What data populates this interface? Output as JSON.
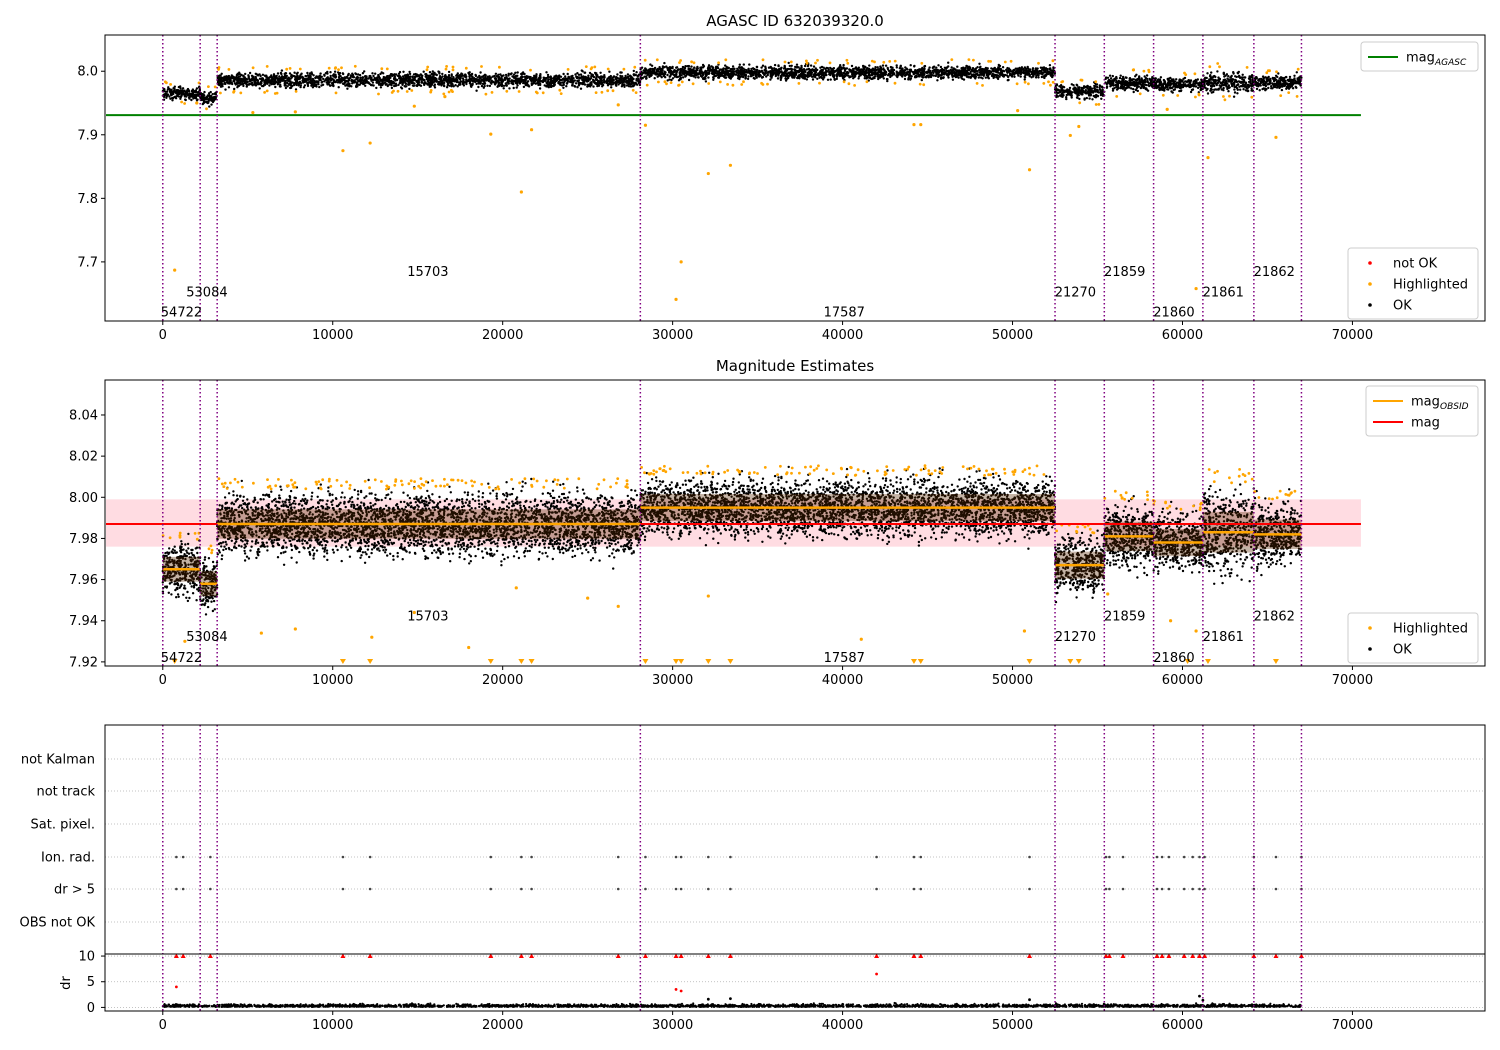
{
  "figure": {
    "title_top": "AGASC ID 632039320.0",
    "title_middle": "Magnitude Estimates"
  },
  "colors": {
    "ok": "#000000",
    "highlighted": "#ffa500",
    "not_ok": "#ff0000",
    "agasc_line": "#008000",
    "mag_line": "#ff0000",
    "obsid_line": "#ffa500",
    "boundary": "#800080",
    "band": "#ffc0cb",
    "grid": "#b0b0b0"
  },
  "chart_data": [
    {
      "type": "scatter",
      "title": "AGASC ID 632039320.0",
      "xlim": [
        -3400,
        77800
      ],
      "ylim": [
        7.607,
        8.057
      ],
      "xticks": [
        0,
        10000,
        20000,
        30000,
        40000,
        50000,
        60000,
        70000
      ],
      "yticks": [
        7.7,
        7.8,
        7.9,
        8.0
      ],
      "ytick_labels": [
        "7.7",
        "7.8",
        "7.9",
        "8.0"
      ],
      "legend_upper": [
        {
          "label": "mag",
          "sub": "AGASC",
          "kind": "line",
          "color": "#008000"
        }
      ],
      "legend_lower": [
        {
          "label": "not OK",
          "kind": "dot",
          "color": "#ff0000"
        },
        {
          "label": "Highlighted",
          "kind": "dot",
          "color": "#ffa500"
        },
        {
          "label": "OK",
          "kind": "dot",
          "color": "#000000"
        }
      ],
      "mag_agasc": 7.931,
      "mag_agasc_xrange": [
        -3400,
        70500
      ],
      "obs_boundaries": [
        0,
        2200,
        3200,
        28100,
        52500,
        55400,
        58300,
        61200,
        64200,
        67000
      ],
      "obs_labels": [
        {
          "text": "54722",
          "x": 0,
          "level": 0
        },
        {
          "text": "53084",
          "x": 1500,
          "level": 1
        },
        {
          "text": "15703",
          "x": 14500,
          "level": 2
        },
        {
          "text": "17587",
          "x": 39000,
          "level": 0
        },
        {
          "text": "21270",
          "x": 52600,
          "level": 1
        },
        {
          "text": "21859",
          "x": 55500,
          "level": 2
        },
        {
          "text": "21860",
          "x": 58400,
          "level": 0
        },
        {
          "text": "21861",
          "x": 61300,
          "level": 1
        },
        {
          "text": "21862",
          "x": 64300,
          "level": 2
        }
      ],
      "obs_label_levels": [
        7.62,
        7.652,
        7.684
      ],
      "segments": [
        {
          "x0": 0,
          "x1": 2200,
          "mean": 7.965,
          "spread": 0.011
        },
        {
          "x0": 2200,
          "x1": 3200,
          "mean": 7.958,
          "spread": 0.011
        },
        {
          "x0": 3200,
          "x1": 28100,
          "mean": 7.986,
          "spread": 0.013
        },
        {
          "x0": 28100,
          "x1": 52500,
          "mean": 7.998,
          "spread": 0.012
        },
        {
          "x0": 52500,
          "x1": 55400,
          "mean": 7.968,
          "spread": 0.012
        },
        {
          "x0": 55400,
          "x1": 58300,
          "mean": 7.982,
          "spread": 0.013
        },
        {
          "x0": 58300,
          "x1": 61200,
          "mean": 7.979,
          "spread": 0.012
        },
        {
          "x0": 61200,
          "x1": 64200,
          "mean": 7.983,
          "spread": 0.018
        },
        {
          "x0": 64200,
          "x1": 67000,
          "mean": 7.982,
          "spread": 0.013
        }
      ],
      "highlighted": [
        {
          "x": 700,
          "y": 7.687
        },
        {
          "x": 2000,
          "y": 7.95
        },
        {
          "x": 10600,
          "y": 7.875
        },
        {
          "x": 12200,
          "y": 7.887
        },
        {
          "x": 14800,
          "y": 7.945
        },
        {
          "x": 19300,
          "y": 7.901
        },
        {
          "x": 21100,
          "y": 7.81
        },
        {
          "x": 21700,
          "y": 7.908
        },
        {
          "x": 26800,
          "y": 7.947
        },
        {
          "x": 28400,
          "y": 7.915
        },
        {
          "x": 30200,
          "y": 7.641
        },
        {
          "x": 30500,
          "y": 7.7
        },
        {
          "x": 32100,
          "y": 7.839
        },
        {
          "x": 33400,
          "y": 7.852
        },
        {
          "x": 44200,
          "y": 7.916
        },
        {
          "x": 44600,
          "y": 7.916
        },
        {
          "x": 50300,
          "y": 7.938
        },
        {
          "x": 51000,
          "y": 7.845
        },
        {
          "x": 53400,
          "y": 7.899
        },
        {
          "x": 53900,
          "y": 7.913
        },
        {
          "x": 59100,
          "y": 7.94
        },
        {
          "x": 60800,
          "y": 7.658
        },
        {
          "x": 61500,
          "y": 7.864
        },
        {
          "x": 65500,
          "y": 7.896
        },
        {
          "x": 5300,
          "y": 7.935
        },
        {
          "x": 7800,
          "y": 7.936
        },
        {
          "x": 16600,
          "y": 7.96
        }
      ]
    },
    {
      "type": "scatter",
      "title": "Magnitude Estimates",
      "xlim": [
        -3400,
        77800
      ],
      "ylim": [
        7.918,
        8.057
      ],
      "xticks": [
        0,
        10000,
        20000,
        30000,
        40000,
        50000,
        60000,
        70000
      ],
      "yticks": [
        7.92,
        7.94,
        7.96,
        7.98,
        8.0,
        8.02,
        8.04
      ],
      "ytick_labels": [
        "7.92",
        "7.94",
        "7.96",
        "7.98",
        "8.00",
        "8.02",
        "8.04"
      ],
      "legend_upper": [
        {
          "label": "mag",
          "sub": "OBSID",
          "kind": "line",
          "color": "#ffa500"
        },
        {
          "label": "mag",
          "sub": "",
          "kind": "line",
          "color": "#ff0000"
        }
      ],
      "legend_lower": [
        {
          "label": "Highlighted",
          "kind": "dot",
          "color": "#ffa500"
        },
        {
          "label": "OK",
          "kind": "dot",
          "color": "#000000"
        }
      ],
      "mag": 7.987,
      "mag_band": [
        7.976,
        7.999
      ],
      "mag_xrange": [
        -3400,
        70500
      ],
      "obs_mags": [
        7.965,
        7.958,
        7.987,
        7.995,
        7.967,
        7.981,
        7.978,
        7.983,
        7.982
      ],
      "obs_label_levels": [
        7.922,
        7.932,
        7.942
      ],
      "clipped_markers_x": [
        700,
        10600,
        12200,
        19300,
        21100,
        21700,
        28400,
        30200,
        30500,
        32100,
        33400,
        44200,
        44600,
        51000,
        53400,
        53900,
        60300,
        61500,
        65500
      ],
      "extra_highlighted": [
        {
          "x": 14800,
          "y": 7.944
        },
        {
          "x": 5800,
          "y": 7.934
        },
        {
          "x": 7800,
          "y": 7.936
        },
        {
          "x": 12300,
          "y": 7.932
        },
        {
          "x": 18000,
          "y": 7.927
        },
        {
          "x": 20800,
          "y": 7.956
        },
        {
          "x": 25000,
          "y": 7.951
        },
        {
          "x": 26800,
          "y": 7.947
        },
        {
          "x": 32100,
          "y": 7.952
        },
        {
          "x": 41100,
          "y": 7.931
        },
        {
          "x": 50700,
          "y": 7.935
        },
        {
          "x": 59300,
          "y": 7.94
        },
        {
          "x": 60800,
          "y": 7.935
        },
        {
          "x": 55600,
          "y": 7.953
        },
        {
          "x": 1300,
          "y": 7.93
        }
      ]
    },
    {
      "type": "scatter",
      "title": "",
      "xlim": [
        -3400,
        77800
      ],
      "xticks": [
        0,
        10000,
        20000,
        30000,
        40000,
        50000,
        60000,
        70000
      ],
      "flag_rows": [
        "not Kalman",
        "not track",
        "Sat. pixel.",
        "Ion. rad.",
        "dr > 5",
        "OBS not OK"
      ],
      "flag_events_x": [
        800,
        1200,
        2800,
        10600,
        12200,
        19300,
        21100,
        21700,
        26800,
        28400,
        30200,
        30500,
        32100,
        33400,
        42000,
        44200,
        44600,
        51000,
        55500,
        55700,
        56500,
        58500,
        58800,
        59200,
        60100,
        60600,
        61000,
        61300,
        64200,
        65500,
        67000
      ],
      "dr_ylabel": "dr",
      "dr_ylim": [
        -0.7,
        10.4
      ],
      "dr_yticks": [
        0,
        5,
        10
      ],
      "dr_points": [
        {
          "x": 800,
          "y": 4.0
        },
        {
          "x": 30200,
          "y": 3.5
        },
        {
          "x": 30500,
          "y": 3.2
        },
        {
          "x": 42000,
          "y": 6.5
        },
        {
          "x": 61000,
          "y": 2.2
        },
        {
          "x": 61200,
          "y": 1.4
        },
        {
          "x": 32100,
          "y": 1.6
        },
        {
          "x": 33400,
          "y": 1.7
        },
        {
          "x": 51000,
          "y": 1.5
        }
      ]
    }
  ]
}
